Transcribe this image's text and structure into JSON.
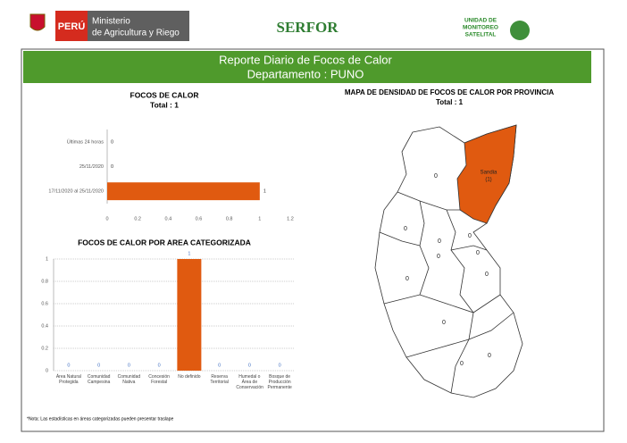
{
  "header": {
    "country": "PERÚ",
    "ministry": [
      "Ministerio",
      "de Agricultura y Riego"
    ],
    "agency": "SERFOR",
    "unit": [
      "UNIDAD DE",
      "MONITOREO",
      "SATELITAL"
    ]
  },
  "banner": {
    "title": "Reporte Diario de Focos de Calor",
    "subtitle": "Departamento : PUNO"
  },
  "chart_data": [
    {
      "type": "bar",
      "orientation": "horizontal",
      "title": "FOCOS DE CALOR",
      "subtitle": "Total : 1",
      "categories": [
        "Últimas 24 horas",
        "25/11/2020",
        "17/11/2020 al 25/11/2020"
      ],
      "values": [
        0,
        0,
        1
      ],
      "color": "#e05a10",
      "xlim": [
        0,
        1.2
      ],
      "xticks": [
        0,
        0.2,
        0.4,
        0.6,
        0.8,
        1,
        1.2
      ],
      "grid": false
    },
    {
      "type": "bar",
      "orientation": "vertical",
      "title": "FOCOS DE CALOR POR AREA CATEGORIZADA",
      "categories": [
        "Área Natural Protegida",
        "Comunidad Campesina",
        "Comunidad Nativa",
        "Concesión Forestal",
        "No definido",
        "Reserva Territorial",
        "Humedal o Área de Conservación",
        "Bosque de Producción Permanente"
      ],
      "values": [
        0,
        0,
        0,
        0,
        1,
        0,
        0,
        0
      ],
      "color": "#e05a10",
      "ylim": [
        0,
        1
      ],
      "yticks": [
        0,
        0.2,
        0.4,
        0.6,
        0.8,
        1
      ],
      "grid": true
    }
  ],
  "map": {
    "title": "MAPA DE DENSIDAD DE FOCOS DE CALOR POR PROVINCIA",
    "subtitle": "Total : 1",
    "highlight_color": "#e05a10",
    "regions": [
      {
        "value": 0
      },
      {
        "value": 0
      },
      {
        "value": 0
      },
      {
        "value": 0
      },
      {
        "value": 0
      },
      {
        "value": 0
      },
      {
        "value": 0
      },
      {
        "value": 0
      },
      {
        "value": 0
      },
      {
        "value": 0
      },
      {
        "value": 0
      },
      {
        "name": "Sandia",
        "value": 1,
        "value_label": "(1)"
      }
    ]
  },
  "note": "*Nota: Las estadísticas en áreas categorizadas pueden presentar traslape"
}
